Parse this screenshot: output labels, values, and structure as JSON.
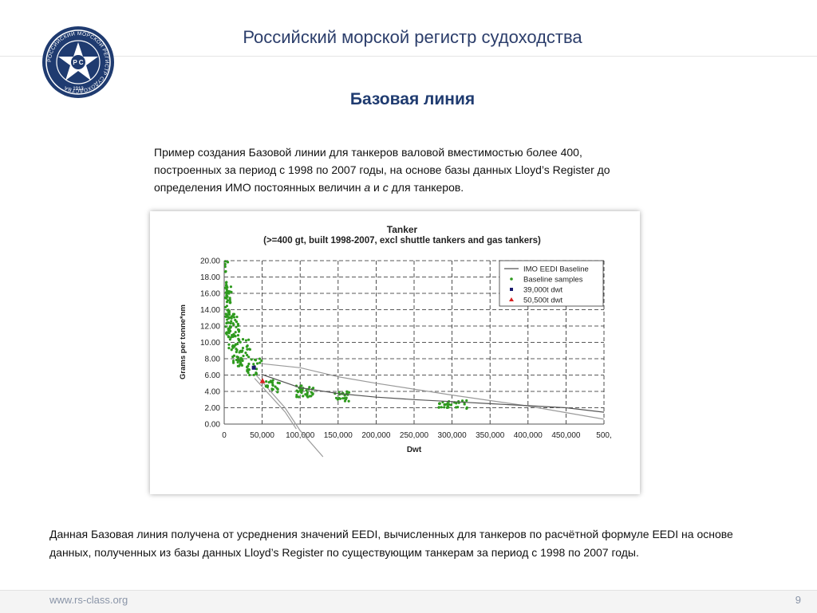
{
  "header": {
    "org_title": "Российский морской регистр судоходства",
    "logo_text": "РОССИЙСКИЙ МОРСКОЙ РЕГИСТР СУДОХОДСТВА",
    "logo_year": "1913",
    "logo_initials": "P C"
  },
  "slide": {
    "title": "Базовая линия",
    "intro_part1": "Пример создания Базовой линии для танкеров валовой вместимостью более 400, построенных за период с 1998 по 2007 годы, на основе базы данных Lloyd’s Register до определения ИМО постоянных величин ",
    "intro_var_a": "a",
    "intro_and": " и ",
    "intro_var_c": "c",
    "intro_part2": " для танкеров.",
    "bottom_text": "Данная Базовая линия получена от усреднения значений EEDI, вычисленных для танкеров по расчётной формуле EEDI на основе данных, полученных из базы данных Lloyd’s Register по существующим танкерам за период с 1998 по 2007 годы."
  },
  "footer": {
    "website": "www.rs-class.org",
    "page_number": "9"
  },
  "chart_data": {
    "type": "scatter",
    "title": "Tanker",
    "subtitle": "(>=400 gt, built 1998-2007, excl shuttle tankers and gas tankers)",
    "xlabel": "Dwt",
    "ylabel": "Grams per tonne*nm",
    "xlim": [
      0,
      500000
    ],
    "ylim": [
      0,
      20
    ],
    "x_ticks": [
      "0",
      "50,000",
      "100,000",
      "150,000",
      "200,000",
      "250,000",
      "300,000",
      "350,000",
      "400,000",
      "450,000",
      "500,"
    ],
    "y_ticks": [
      "0.00",
      "2.00",
      "4.00",
      "6.00",
      "8.00",
      "10.00",
      "12.00",
      "14.00",
      "16.00",
      "18.00",
      "20.00"
    ],
    "grid": true,
    "legend_position": "top-right",
    "colors": {
      "baseline": "#555555",
      "samples": "#2e9a1e",
      "dwt39000": "#1a1a6e",
      "dwt50500": "#d82020",
      "upper_line": "#9a9a9a"
    },
    "series": [
      {
        "name": "IMO EEDI Baseline",
        "kind": "line",
        "points": [
          [
            49000,
            6.1
          ],
          [
            100000,
            4.45
          ],
          [
            150000,
            3.75
          ],
          [
            200000,
            3.3
          ],
          [
            250000,
            3.0
          ],
          [
            300000,
            2.75
          ],
          [
            350000,
            2.5
          ],
          [
            400000,
            2.25
          ],
          [
            450000,
            2.0
          ],
          [
            500000,
            1.45
          ]
        ]
      },
      {
        "name": "Baseline samples",
        "kind": "scatter",
        "clusters": [
          {
            "x": [
              1000,
              5000
            ],
            "y": [
              14.0,
              20.0
            ],
            "count": 22
          },
          {
            "x": [
              2000,
              10000
            ],
            "y": [
              11.0,
              17.0
            ],
            "count": 45
          },
          {
            "x": [
              5000,
              20000
            ],
            "y": [
              9.0,
              13.5
            ],
            "count": 45
          },
          {
            "x": [
              10000,
              35000
            ],
            "y": [
              7.0,
              10.5
            ],
            "count": 50
          },
          {
            "x": [
              30000,
              50000
            ],
            "y": [
              6.0,
              8.0
            ],
            "count": 25
          },
          {
            "x": [
              55000,
              75000
            ],
            "y": [
              3.8,
              5.6
            ],
            "count": 22
          },
          {
            "x": [
              95000,
              118000
            ],
            "y": [
              3.3,
              4.7
            ],
            "count": 32
          },
          {
            "x": [
              145000,
              165000
            ],
            "y": [
              2.8,
              4.0
            ],
            "count": 22
          },
          {
            "x": [
              280000,
              320000
            ],
            "y": [
              1.9,
              2.9
            ],
            "count": 30
          }
        ]
      },
      {
        "name": "39,000t dwt",
        "kind": "marker",
        "points": [
          [
            39000,
            6.9
          ]
        ]
      },
      {
        "name": "50,500t dwt",
        "kind": "marker",
        "points": [
          [
            50500,
            5.3
          ]
        ]
      }
    ],
    "other_lines": [
      {
        "points": [
          [
            49000,
            7.4
          ],
          [
            100000,
            6.9
          ],
          [
            150000,
            5.8
          ],
          [
            200000,
            5.0
          ],
          [
            300000,
            3.55
          ],
          [
            400000,
            2.2
          ],
          [
            500000,
            0.6
          ]
        ]
      },
      {
        "points": [
          [
            40000,
            6.2
          ],
          [
            80000,
            2.0
          ],
          [
            100000,
            -0.8
          ],
          [
            130000,
            -4.0
          ]
        ]
      },
      {
        "points": [
          [
            40000,
            5.6
          ],
          [
            80000,
            1.5
          ],
          [
            95000,
            -0.6
          ]
        ]
      }
    ]
  }
}
